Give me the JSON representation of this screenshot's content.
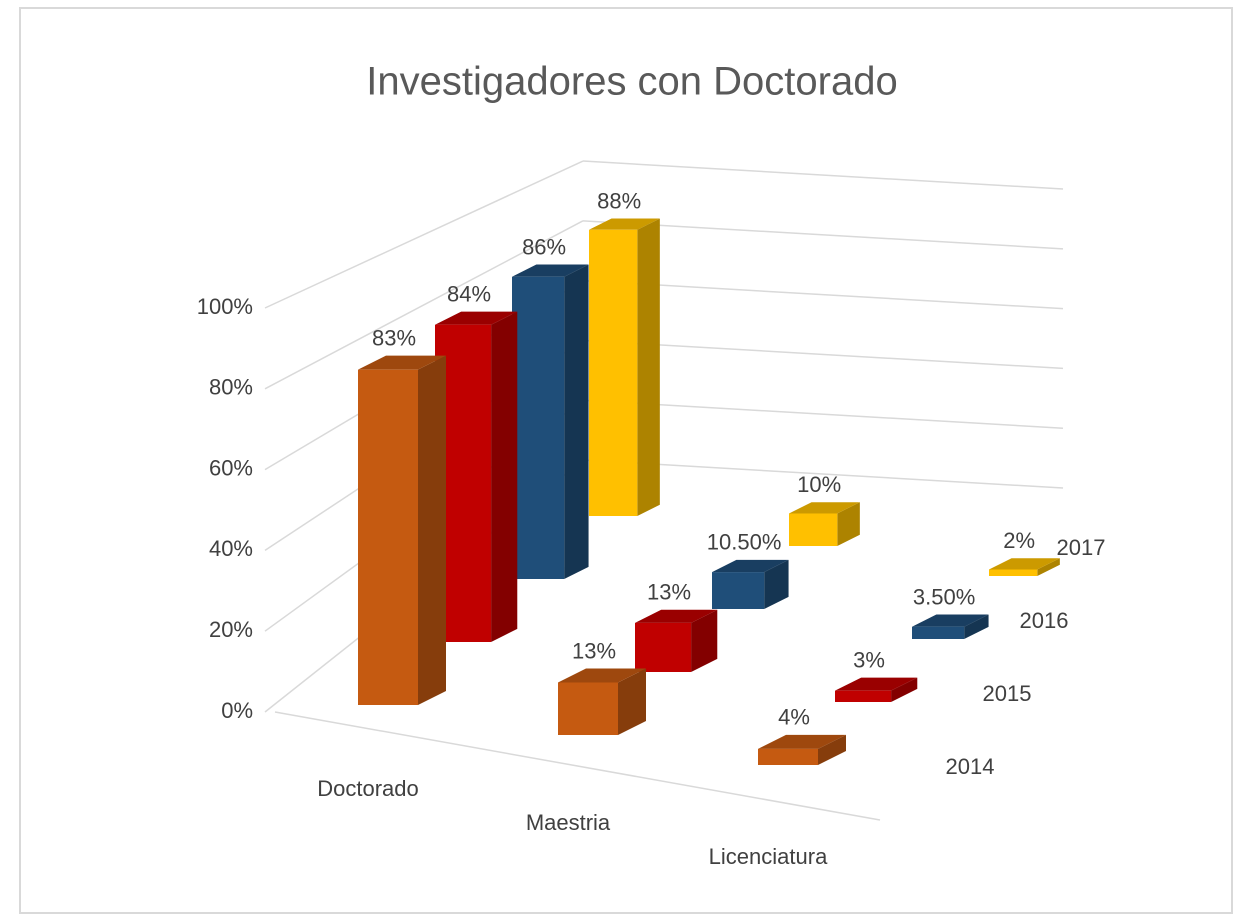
{
  "chart_data": {
    "type": "bar3d",
    "title": "Investigadores con Doctorado",
    "categories": [
      "Doctorado",
      "Maestria",
      "Licenciatura"
    ],
    "series": [
      {
        "name": "2014",
        "color": "#c55a11",
        "values": [
          83,
          13,
          4
        ],
        "value_labels": [
          "83%",
          "13%",
          "4%"
        ]
      },
      {
        "name": "2015",
        "color": "#c00000",
        "values": [
          84,
          13,
          3
        ],
        "value_labels": [
          "84%",
          "13%",
          "3%"
        ]
      },
      {
        "name": "2016",
        "color": "#1f4e79",
        "values": [
          86,
          10.5,
          3.5
        ],
        "value_labels": [
          "86%",
          "10.50%",
          "3.50%"
        ]
      },
      {
        "name": "2017",
        "color": "#ffc000",
        "values": [
          88,
          10,
          2
        ],
        "value_labels": [
          "88%",
          "10%",
          "2%"
        ]
      }
    ],
    "ylim": [
      0,
      100
    ],
    "yticks": [
      {
        "value": 0,
        "label": "0%"
      },
      {
        "value": 20,
        "label": "20%"
      },
      {
        "value": 40,
        "label": "40%"
      },
      {
        "value": 60,
        "label": "60%"
      },
      {
        "value": 80,
        "label": "80%"
      },
      {
        "value": 100,
        "label": "100%"
      }
    ],
    "grid": true
  }
}
